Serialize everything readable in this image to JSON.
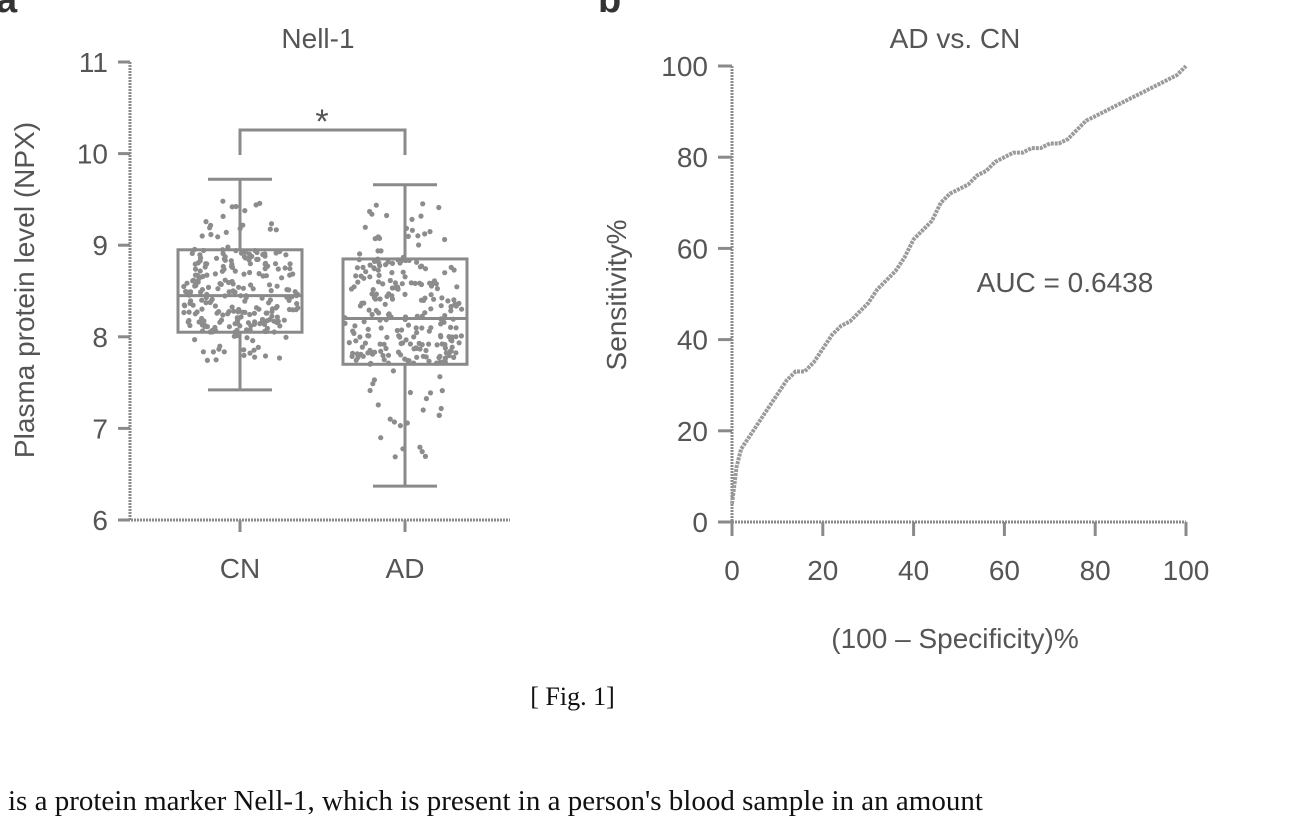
{
  "panels": {
    "a": {
      "letter": "a"
    },
    "b": {
      "letter": "b"
    }
  },
  "chart_data": [
    {
      "type": "box",
      "title": "Nell-1",
      "xlabel": "",
      "ylabel": "Plasma protein level (NPX)",
      "ylim": [
        6,
        11
      ],
      "yticks": [
        "6",
        "7",
        "8",
        "9",
        "10",
        "11"
      ],
      "categories": [
        "CN",
        "AD"
      ],
      "groups": [
        {
          "label": "CN",
          "min": 7.42,
          "q1": 8.05,
          "median": 8.45,
          "q3": 8.95,
          "max": 9.72
        },
        {
          "label": "AD",
          "min": 6.37,
          "q1": 7.7,
          "median": 8.2,
          "q3": 8.85,
          "max": 9.66
        }
      ],
      "significance": {
        "between": [
          "CN",
          "AD"
        ],
        "label": "*"
      }
    },
    {
      "type": "line",
      "title": "AD vs. CN",
      "xlabel": "(100 – Specificity)%",
      "ylabel": "Sensitivity%",
      "xlim": [
        0,
        100
      ],
      "ylim": [
        0,
        100
      ],
      "xticks": [
        "0",
        "20",
        "40",
        "60",
        "80",
        "100"
      ],
      "yticks": [
        "0",
        "20",
        "40",
        "60",
        "80",
        "100"
      ],
      "annotation": "AUC = 0.6438",
      "series": [
        {
          "x": [
            0,
            0.5,
            1,
            2,
            4,
            6,
            8,
            10,
            12,
            14,
            16,
            18,
            20,
            22,
            24,
            26,
            28,
            30,
            32,
            34,
            36,
            38,
            40,
            42,
            44,
            46,
            48,
            50,
            52,
            54,
            56,
            58,
            60,
            62,
            64,
            66,
            68,
            70,
            72,
            74,
            76,
            78,
            80,
            82,
            84,
            86,
            88,
            90,
            92,
            94,
            96,
            98,
            100
          ],
          "y": [
            4,
            8,
            12,
            16,
            19,
            22,
            25,
            28,
            31,
            33,
            33,
            35,
            38,
            41,
            43,
            44,
            46,
            48,
            51,
            53,
            55,
            58,
            62,
            64,
            66,
            70,
            72,
            73,
            74,
            76,
            77,
            79,
            80,
            81,
            81,
            82,
            82,
            83,
            83,
            84,
            86,
            88,
            89,
            90,
            91,
            92,
            93,
            94,
            95,
            96,
            97,
            98,
            100
          ]
        }
      ]
    }
  ],
  "caption": "[ Fig. 1]",
  "body_text": "is a protein marker Nell-1, which is present in a person's blood sample in an amount"
}
